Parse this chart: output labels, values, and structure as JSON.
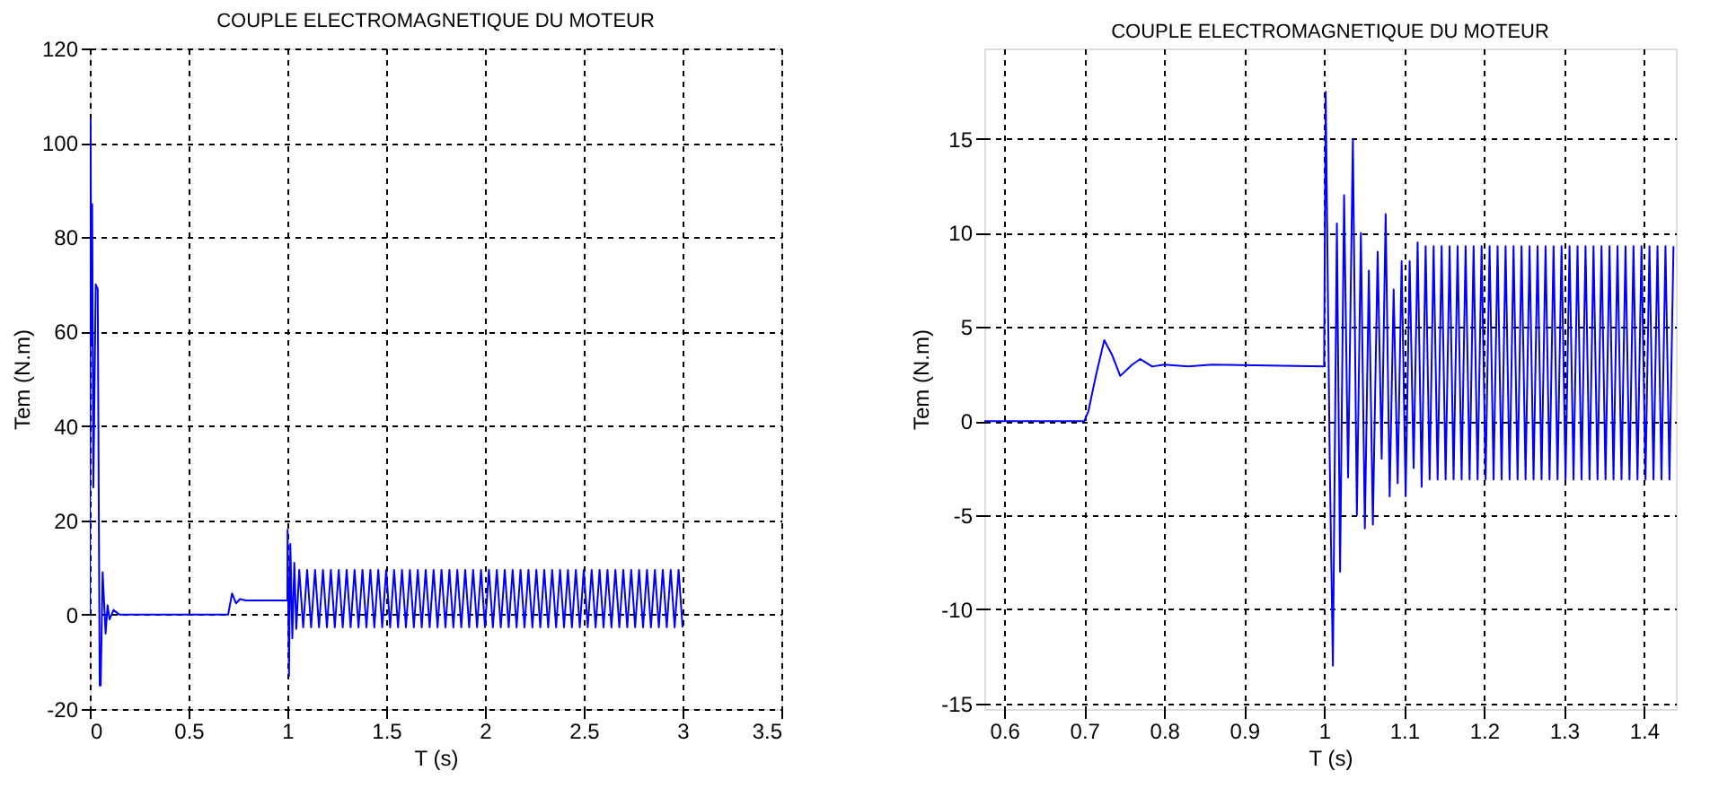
{
  "chart_data": [
    {
      "type": "line",
      "title": "COUPLE ELECTROMAGNETIQUE DU MOTEUR",
      "xlabel": "T (s)",
      "ylabel": "Tem (N.m)",
      "xlim": [
        0,
        3.5
      ],
      "ylim": [
        -20,
        120
      ],
      "xticks": [
        0,
        0.5,
        1,
        1.5,
        2,
        2.5,
        3,
        3.5
      ],
      "yticks": [
        -20,
        0,
        20,
        40,
        60,
        80,
        100,
        120
      ],
      "grid": true,
      "line_style": "solid",
      "series": [
        {
          "color": "#0000ff",
          "x": [
            0,
            0.004,
            0.008,
            0.012,
            0.018,
            0.03,
            0.04,
            0.05,
            0.055,
            0.065,
            0.08,
            0.09,
            0.1,
            0.12,
            0.15,
            0.7,
            0.72,
            0.74,
            0.76,
            0.79,
            1.0,
            1.001,
            1.008,
            1.015,
            1.025,
            1.035,
            1.045,
            1.06,
            1.08,
            1.1,
            1.12,
            1.14,
            1.16,
            1.18,
            1.2,
            1.22,
            1.24,
            1.26,
            1.28,
            1.3,
            1.32,
            1.34,
            1.36,
            1.38,
            1.4,
            1.42,
            1.44,
            1.46,
            1.48,
            1.5,
            1.52,
            1.54,
            1.56,
            1.58,
            1.6,
            1.62,
            1.64,
            1.66,
            1.68,
            1.7,
            1.72,
            1.74,
            1.76,
            1.78,
            1.8,
            1.82,
            1.84,
            1.86,
            1.88,
            1.9,
            1.92,
            1.94,
            1.96,
            1.98,
            2.0,
            2.02,
            2.04,
            2.06,
            2.08,
            2.1,
            2.12,
            2.14,
            2.16,
            2.18,
            2.2,
            2.22,
            2.24,
            2.26,
            2.28,
            2.3,
            2.32,
            2.34,
            2.36,
            2.38,
            2.4,
            2.42,
            2.44,
            2.46,
            2.48,
            2.5,
            2.52,
            2.54,
            2.56,
            2.58,
            2.6,
            2.62,
            2.64,
            2.66,
            2.68,
            2.7,
            2.72,
            2.74,
            2.76,
            2.78,
            2.8,
            2.82,
            2.84,
            2.86,
            2.88,
            2.9,
            2.92,
            2.94,
            2.96,
            2.98,
            3.0
          ],
          "values": [
            0,
            105,
            57,
            87,
            27,
            70,
            69,
            -15,
            -15,
            9,
            -4,
            2,
            -1,
            1,
            0,
            0,
            4.5,
            2.4,
            3.3,
            3,
            3,
            18,
            -13,
            15,
            -5,
            11,
            -3,
            9.5,
            -2.7,
            9.5,
            -2.7,
            9.5,
            -2.7,
            9.5,
            -2.7,
            9.5,
            -2.7,
            9.5,
            -2.7,
            9.5,
            -2.7,
            9.5,
            -2.7,
            9.5,
            -2.7,
            9.5,
            -2.7,
            9.5,
            -2.7,
            9.5,
            -2.7,
            9.5,
            -2.7,
            9.5,
            -2.7,
            9.5,
            -2.7,
            9.5,
            -2.7,
            9.5,
            -2.7,
            9.5,
            -2.7,
            9.5,
            -2.7,
            9.5,
            -2.7,
            9.5,
            -2.7,
            9.5,
            -2.7,
            9.5,
            -2.7,
            9.5,
            -2.7,
            9.5,
            -2.7,
            9.5,
            -2.7,
            9.5,
            -2.7,
            9.5,
            -2.7,
            9.5,
            -2.7,
            9.5,
            -2.7,
            9.5,
            -2.7,
            9.5,
            -2.7,
            9.5,
            -2.7,
            9.5,
            -2.7,
            9.5,
            -2.7,
            9.5,
            -2.7,
            9.5,
            -2.7,
            9.5,
            -2.7,
            9.5,
            -2.7,
            9.5,
            -2.7,
            9.5,
            -2.7,
            9.5,
            -2.7,
            9.5,
            -2.7,
            9.5,
            -2.7,
            9.5,
            -2.7,
            9.5,
            -2.7,
            9.5,
            -2.7,
            9.5,
            -2.7,
            9.5,
            -2.7
          ]
        }
      ]
    },
    {
      "type": "line",
      "title": "COUPLE ELECTROMAGNETIQUE DU MOTEUR",
      "xlabel": "T (s)",
      "ylabel": "Tem (N.m)",
      "xlim": [
        0.575,
        1.44
      ],
      "ylim": [
        -15.3,
        19.8
      ],
      "xticks": [
        0.6,
        0.7,
        0.8,
        0.9,
        1,
        1.1,
        1.2,
        1.3,
        1.4
      ],
      "yticks": [
        -15,
        -10,
        -5,
        0,
        5,
        10,
        15
      ],
      "grid": true,
      "line_style": "solid",
      "series": [
        {
          "color": "#0000ff",
          "x": [
            0.575,
            0.7,
            0.705,
            0.715,
            0.725,
            0.735,
            0.745,
            0.76,
            0.77,
            0.785,
            0.8,
            0.83,
            0.86,
            1.0,
            1.002,
            1.007,
            1.011,
            1.016,
            1.02,
            1.025,
            1.03,
            1.036,
            1.041,
            1.046,
            1.051,
            1.056,
            1.061,
            1.067,
            1.072,
            1.077,
            1.082,
            1.087,
            1.092,
            1.097,
            1.102,
            1.107,
            1.112,
            1.117,
            1.122,
            1.127,
            1.132,
            1.137,
            1.142,
            1.147,
            1.152,
            1.157,
            1.162,
            1.167,
            1.172,
            1.177,
            1.182,
            1.187,
            1.192,
            1.197,
            1.202,
            1.207,
            1.212,
            1.217,
            1.222,
            1.227,
            1.232,
            1.237,
            1.242,
            1.247,
            1.252,
            1.257,
            1.262,
            1.267,
            1.272,
            1.277,
            1.282,
            1.287,
            1.292,
            1.297,
            1.302,
            1.307,
            1.312,
            1.317,
            1.322,
            1.327,
            1.332,
            1.337,
            1.342,
            1.347,
            1.352,
            1.357,
            1.362,
            1.367,
            1.372,
            1.377,
            1.382,
            1.387,
            1.392,
            1.397,
            1.402,
            1.407,
            1.412,
            1.417,
            1.422,
            1.427,
            1.432,
            1.437
          ],
          "values": [
            0,
            0,
            0.5,
            2.5,
            4.3,
            3.5,
            2.4,
            3.0,
            3.3,
            2.9,
            3.0,
            2.9,
            3.0,
            2.9,
            17.5,
            -2,
            -13,
            10.5,
            -8,
            12,
            -3,
            15,
            -5,
            10,
            -5.7,
            8,
            -5.5,
            9,
            -2,
            11,
            -4,
            7,
            -3.3,
            8.5,
            -4,
            8.5,
            -2.5,
            9.5,
            -3.5,
            9.3,
            -3.1,
            9.3,
            -3.1,
            9.3,
            -3.1,
            9.3,
            -3.1,
            9.3,
            -3.1,
            9.3,
            -3.1,
            9.3,
            -3.1,
            9.3,
            -3.1,
            9.3,
            -3.1,
            9.3,
            -3.1,
            9.3,
            -3.1,
            9.3,
            -3.1,
            9.3,
            -3.1,
            9.3,
            -3.1,
            9.3,
            -3.1,
            9.3,
            -3.1,
            9.3,
            -3.1,
            9.3,
            -3.1,
            9.3,
            -3.1,
            9.3,
            -3.1,
            9.3,
            -3.1,
            9.3,
            -3.1,
            9.3,
            -3.1,
            9.3,
            -3.1,
            9.3,
            -3.1,
            9.3,
            -3.1,
            9.3,
            -3.1,
            9.3,
            -3.1,
            9.3,
            -3.1,
            9.3,
            -3.1,
            9.3,
            -3.1,
            9.3
          ]
        }
      ]
    }
  ]
}
